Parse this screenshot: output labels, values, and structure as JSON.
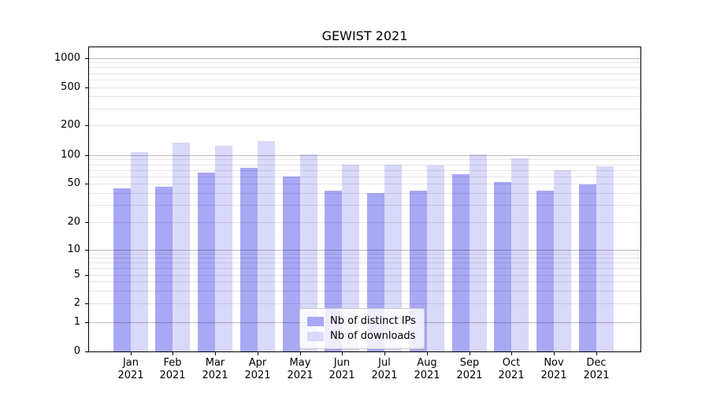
{
  "chart_data": {
    "type": "bar",
    "title": "GEWIST 2021",
    "year": "2021",
    "months": [
      "Jan",
      "Feb",
      "Mar",
      "Apr",
      "May",
      "Jun",
      "Jul",
      "Aug",
      "Sep",
      "Oct",
      "Nov",
      "Dec"
    ],
    "categories": [
      "Jan 2021",
      "Feb 2021",
      "Mar 2021",
      "Apr 2021",
      "May 2021",
      "Jun 2021",
      "Jul 2021",
      "Aug 2021",
      "Sep 2021",
      "Oct 2021",
      "Nov 2021",
      "Dec 2021"
    ],
    "series": [
      {
        "name": "Nb of distinct IPs",
        "color": "#a8a8f5",
        "values": [
          45,
          46,
          66,
          74,
          60,
          42,
          40,
          42,
          63,
          52,
          42,
          49
        ]
      },
      {
        "name": "Nb of downloads",
        "color": "#d9d9fa",
        "values": [
          108,
          135,
          124,
          138,
          101,
          80,
          79,
          78,
          101,
          92,
          70,
          76
        ]
      }
    ],
    "y_axis": {
      "scale": "symlog",
      "ticks": [
        0,
        1,
        2,
        5,
        10,
        20,
        50,
        100,
        200,
        500,
        1000
      ]
    },
    "x_axis": {
      "label_lines": 2
    },
    "legend": {
      "position": "lower center"
    },
    "grid": true,
    "colors": {
      "background": "#ffffff",
      "spine": "#000000",
      "major_grid": "#b9b9b9",
      "minor_grid": "#e6e6e6"
    }
  }
}
